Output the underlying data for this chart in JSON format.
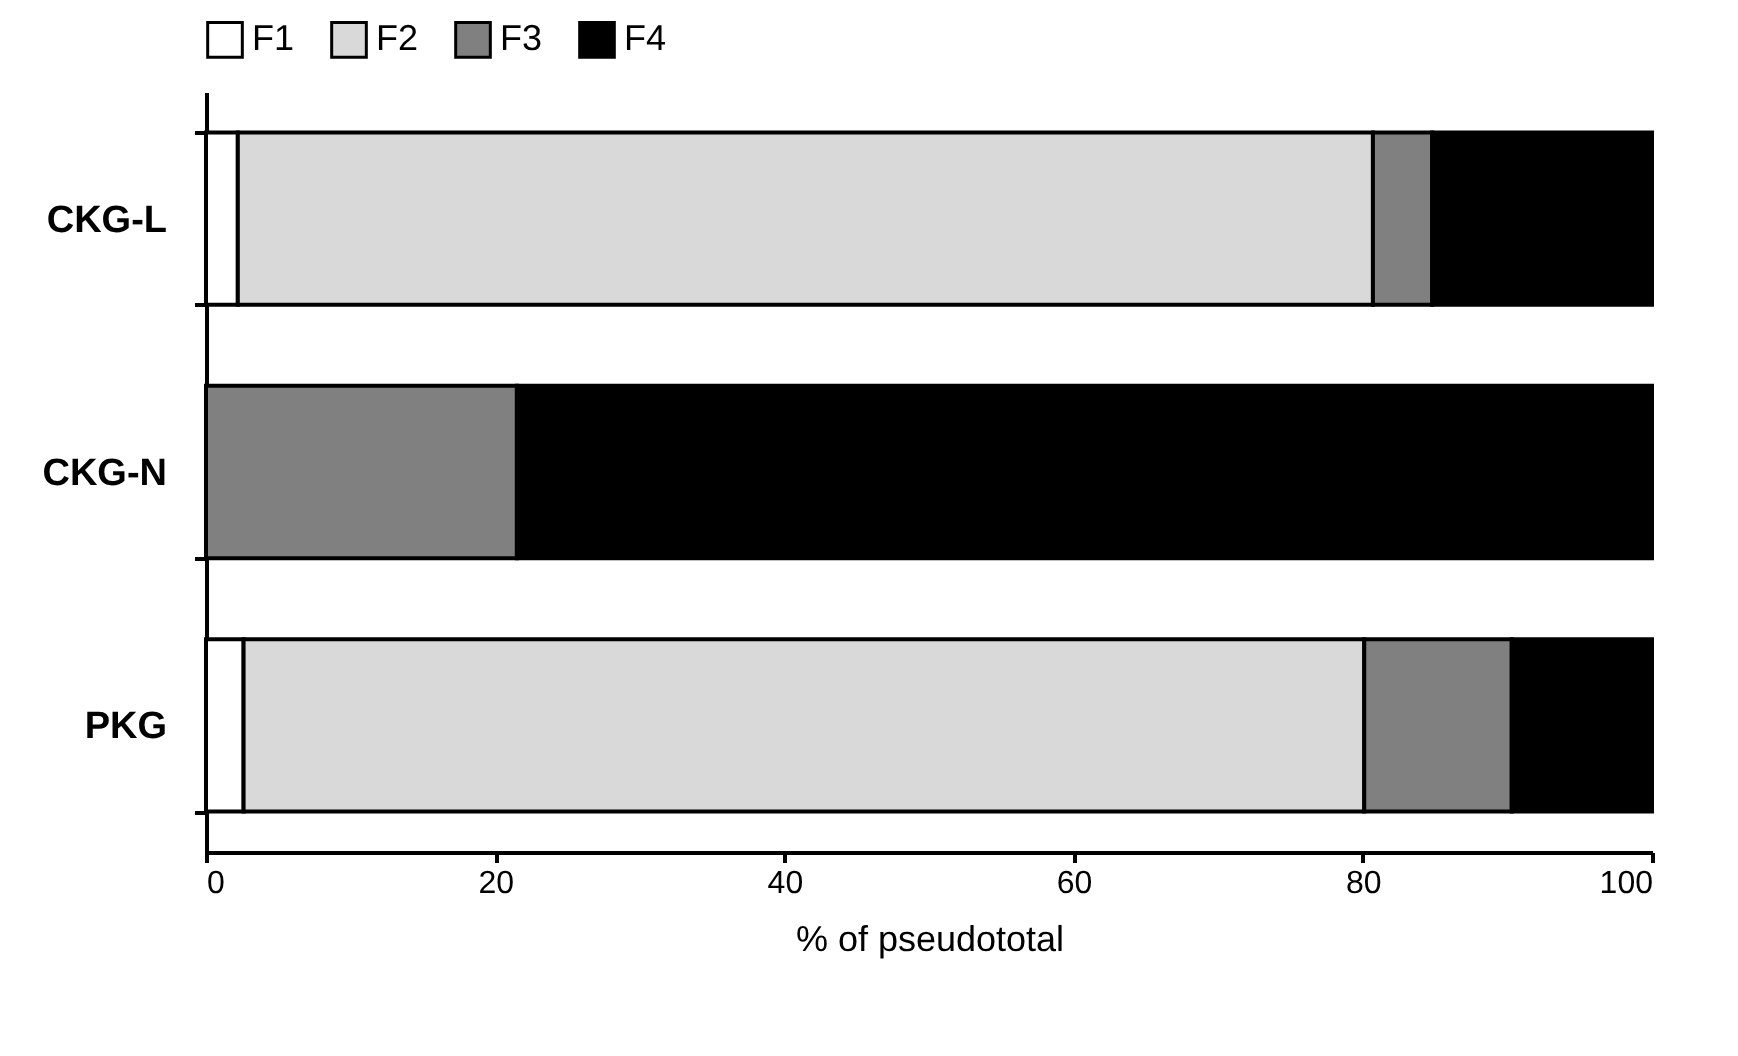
{
  "chart_data": {
    "type": "bar",
    "orientation": "horizontal",
    "stacked": true,
    "categories": [
      "CKG-L",
      "CKG-N",
      "PKG"
    ],
    "series": [
      {
        "name": "F1",
        "color": "#ffffff",
        "values": [
          2.2,
          0,
          2.6
        ]
      },
      {
        "name": "F2",
        "color": "#d9d9d9",
        "values": [
          78.5,
          0,
          77.5
        ]
      },
      {
        "name": "F3",
        "color": "#808080",
        "values": [
          4.1,
          21.5,
          10.2
        ]
      },
      {
        "name": "F4",
        "color": "#000000",
        "values": [
          15.2,
          78.5,
          9.7
        ]
      }
    ],
    "xlabel": "% of pseudototal",
    "xlim": [
      0,
      100
    ],
    "xticks": [
      0,
      20,
      40,
      60,
      80,
      100
    ],
    "grid": false,
    "legend": "top"
  }
}
